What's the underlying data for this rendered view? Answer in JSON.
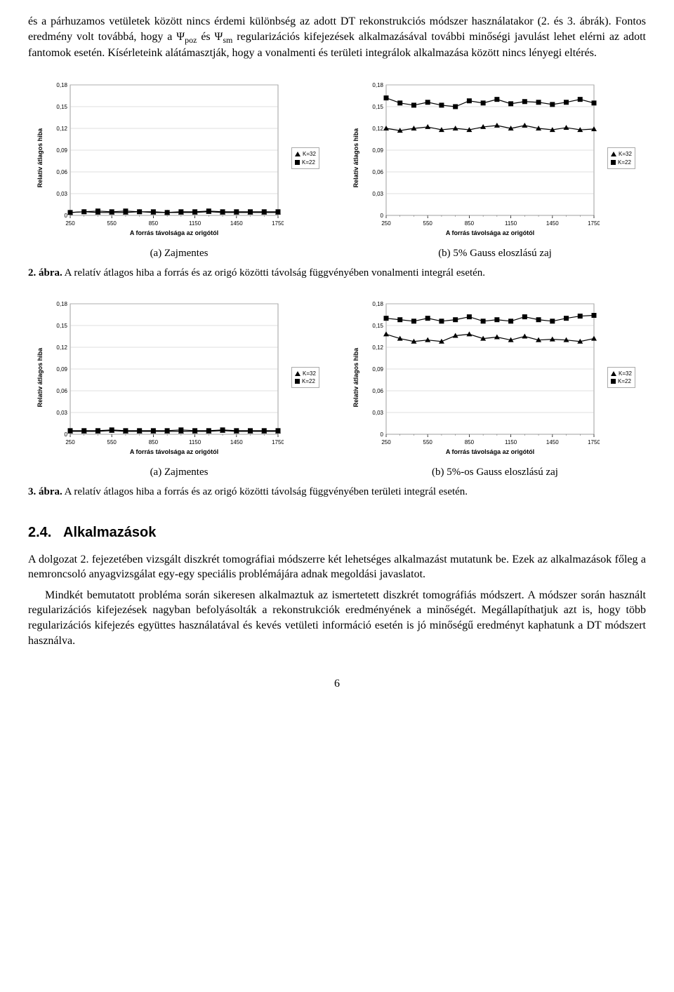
{
  "intro": {
    "p1": "és a párhuzamos vetületek között nincs érdemi különbség az adott DT rekonstrukciós módszer használatakor (2. és 3. ábrák). Fontos eredmény volt továbbá, hogy a Ψpoz és Ψsm regularizációs kifejezések alkalmazásával további minőségi javulást lehet elérni az adott fantomok esetén. Kísérleteink alátámasztják, hogy a vonalmenti és területi integrálok alkalmazása között nincs lényegi eltérés."
  },
  "chart_common": {
    "ylabel": "Relatív átlagos hiba",
    "xlabel": "A forrás távolsága az origótól",
    "xticks": [
      250,
      550,
      850,
      1150,
      1450,
      1750
    ],
    "x_minor_step": 100,
    "yticks": [
      "0",
      "0,03",
      "0,06",
      "0,09",
      "0,12",
      "0,15",
      "0,18"
    ],
    "ynum": [
      0,
      0.03,
      0.06,
      0.09,
      0.12,
      0.15,
      0.18
    ],
    "ylim": [
      0,
      0.18
    ],
    "xlim": [
      250,
      1750
    ],
    "legend": [
      "K=32",
      "K=22"
    ],
    "marker1": "triangle",
    "marker2": "square",
    "color": "#000000",
    "grid_color": "#c0c0c0",
    "bg": "#ffffff",
    "font_family": "Arial",
    "tick_fontsize": 8,
    "label_fontsize": 9
  },
  "charts": [
    {
      "id": "fig2a_zajmentes",
      "xvals": [
        250,
        350,
        450,
        550,
        650,
        750,
        850,
        950,
        1050,
        1150,
        1250,
        1350,
        1450,
        1550,
        1650,
        1750
      ],
      "k32_y": [
        0.004,
        0.005,
        0.004,
        0.004,
        0.004,
        0.005,
        0.004,
        0.004,
        0.004,
        0.004,
        0.005,
        0.004,
        0.004,
        0.004,
        0.004,
        0.004
      ],
      "k22_y": [
        0.004,
        0.005,
        0.006,
        0.005,
        0.006,
        0.005,
        0.005,
        0.004,
        0.005,
        0.005,
        0.006,
        0.005,
        0.005,
        0.005,
        0.005,
        0.005
      ]
    },
    {
      "id": "fig2b_5gauss",
      "xvals": [
        250,
        350,
        450,
        550,
        650,
        750,
        850,
        950,
        1050,
        1150,
        1250,
        1350,
        1450,
        1550,
        1650,
        1750
      ],
      "k32_y": [
        0.12,
        0.117,
        0.12,
        0.122,
        0.118,
        0.12,
        0.118,
        0.122,
        0.124,
        0.12,
        0.124,
        0.12,
        0.118,
        0.121,
        0.118,
        0.119
      ],
      "k22_y": [
        0.162,
        0.155,
        0.152,
        0.156,
        0.152,
        0.15,
        0.158,
        0.155,
        0.16,
        0.154,
        0.157,
        0.156,
        0.153,
        0.156,
        0.16,
        0.155
      ]
    },
    {
      "id": "fig3a_zajmentes",
      "xvals": [
        250,
        350,
        450,
        550,
        650,
        750,
        850,
        950,
        1050,
        1150,
        1250,
        1350,
        1450,
        1550,
        1650,
        1750
      ],
      "k32_y": [
        0.004,
        0.004,
        0.004,
        0.005,
        0.004,
        0.004,
        0.004,
        0.004,
        0.004,
        0.004,
        0.004,
        0.005,
        0.004,
        0.004,
        0.004,
        0.004
      ],
      "k22_y": [
        0.005,
        0.005,
        0.005,
        0.006,
        0.005,
        0.005,
        0.005,
        0.005,
        0.006,
        0.005,
        0.005,
        0.006,
        0.005,
        0.005,
        0.005,
        0.005
      ]
    },
    {
      "id": "fig3b_5gauss",
      "xvals": [
        250,
        350,
        450,
        550,
        650,
        750,
        850,
        950,
        1050,
        1150,
        1250,
        1350,
        1450,
        1550,
        1650,
        1750
      ],
      "k32_y": [
        0.138,
        0.132,
        0.128,
        0.13,
        0.128,
        0.136,
        0.138,
        0.132,
        0.134,
        0.13,
        0.135,
        0.13,
        0.131,
        0.13,
        0.128,
        0.132
      ],
      "k22_y": [
        0.16,
        0.158,
        0.156,
        0.16,
        0.156,
        0.158,
        0.162,
        0.156,
        0.158,
        0.156,
        0.162,
        0.158,
        0.156,
        0.16,
        0.163,
        0.164
      ]
    }
  ],
  "fig2": {
    "sub_a": "(a) Zajmentes",
    "sub_b": "(b) 5% Gauss eloszlású zaj",
    "caption_label": "2. ábra.",
    "caption_text": " A relatív átlagos hiba a forrás és az origó közötti távolság függvényében vonalmenti integrál esetén."
  },
  "fig3": {
    "sub_a": "(a) Zajmentes",
    "sub_b": "(b) 5%-os Gauss eloszlású zaj",
    "caption_label": "3. ábra.",
    "caption_text": " A relatív átlagos hiba a forrás és az origó közötti távolság függvényében területi integrál esetén."
  },
  "section": {
    "num": "2.4.",
    "title": "Alkalmazások"
  },
  "body": {
    "p1": "A dolgozat 2. fejezetében vizsgált diszkrét tomográfiai módszerre két lehetséges alkalmazást mutatunk be. Ezek az alkalmazások főleg a nemroncsoló anyagvizsgálat egy-egy speciális problémájára adnak megoldási javaslatot.",
    "p2": "Mindkét bemutatott probléma során sikeresen alkalmaztuk az ismertetett diszkrét tomográfiás módszert. A módszer során használt regularizációs kifejezések nagyban befolyásolták a rekonstrukciók eredményének a minőségét. Megállapíthatjuk azt is, hogy több regularizációs kifejezés együttes használatával és kevés vetületi információ esetén is jó minőségű eredményt kaphatunk a DT módszert használva."
  },
  "page_number": "6"
}
